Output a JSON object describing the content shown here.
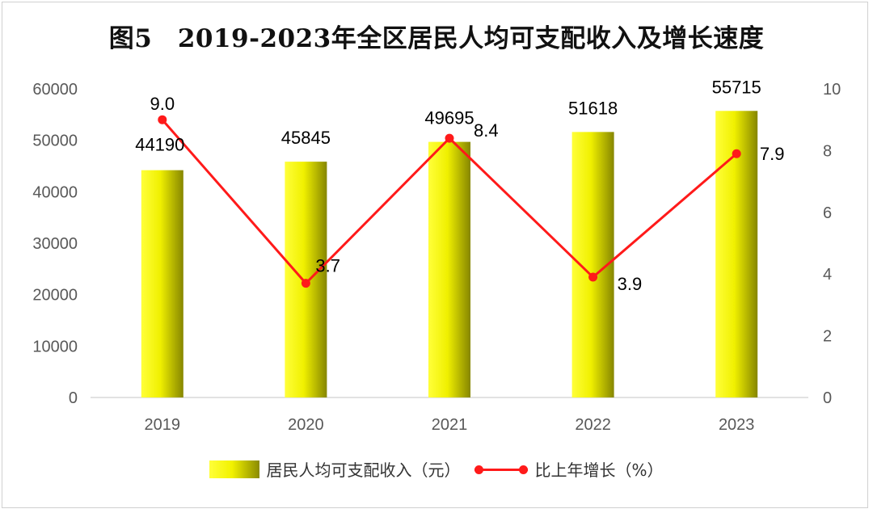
{
  "chart_data": {
    "type": "bar+line",
    "title": "图5　2019-2023年全区居民人均可支配收入及增长速度",
    "categories": [
      "2019",
      "2020",
      "2021",
      "2022",
      "2023"
    ],
    "series": [
      {
        "name": "居民人均可支配收入（元）",
        "type": "bar",
        "axis": "left",
        "values": [
          44190,
          45845,
          49695,
          51618,
          55715
        ],
        "color": "#f2f200"
      },
      {
        "name": "比上年增长（%）",
        "type": "line",
        "axis": "right",
        "values": [
          9.0,
          3.7,
          8.4,
          3.9,
          7.9
        ],
        "color": "#ff1a1a"
      }
    ],
    "y_left": {
      "range": [
        0,
        60000
      ],
      "ticks": [
        "0",
        "10000",
        "20000",
        "30000",
        "40000",
        "50000",
        "60000"
      ]
    },
    "y_right": {
      "range": [
        0,
        10
      ],
      "ticks": [
        "0",
        "2",
        "4",
        "6",
        "8",
        "10"
      ]
    },
    "bar_labels": [
      "44190",
      "45845",
      "49695",
      "51618",
      "55715"
    ],
    "line_labels": [
      "9.0",
      "3.7",
      "8.4",
      "3.9",
      "7.9"
    ],
    "grid": false,
    "legend_position": "bottom"
  }
}
